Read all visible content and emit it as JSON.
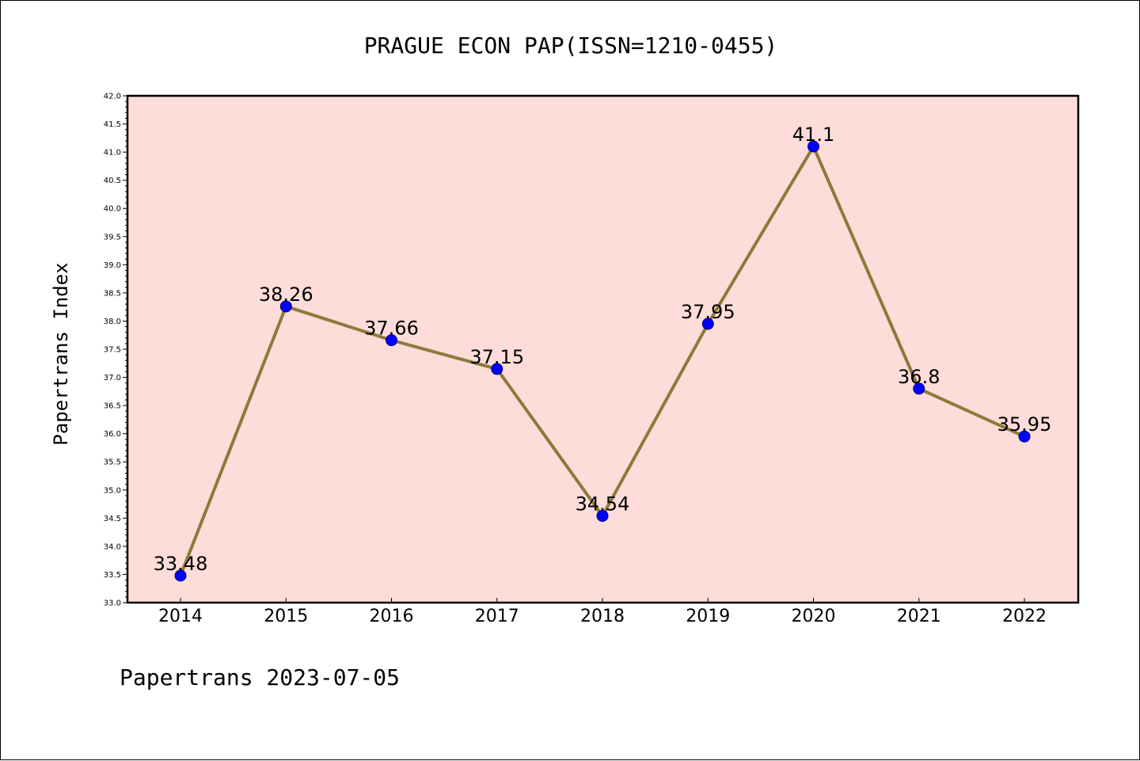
{
  "chart_data": {
    "type": "line",
    "title": "PRAGUE ECON PAP(ISSN=1210-0455)",
    "xlabel": "",
    "ylabel": "Papertrans Index",
    "categories": [
      "2014",
      "2015",
      "2016",
      "2017",
      "2018",
      "2019",
      "2020",
      "2021",
      "2022"
    ],
    "series": [
      {
        "values": [
          33.48,
          38.26,
          37.66,
          37.15,
          34.54,
          37.95,
          41.1,
          36.8,
          35.95
        ],
        "labels": [
          "33.48",
          "38.26",
          "37.66",
          "37.15",
          "34.54",
          "37.95",
          "41.1",
          "36.8",
          "35.95"
        ]
      }
    ],
    "ylim": [
      33.0,
      42.0
    ],
    "yticks": [
      "33.0",
      "33.5",
      "34.0",
      "34.5",
      "35.0",
      "35.5",
      "36.0",
      "36.5",
      "37.0",
      "37.5",
      "38.0",
      "38.5",
      "39.0",
      "39.5",
      "40.0",
      "40.5",
      "41.0",
      "41.5",
      "42.0"
    ],
    "grid": false,
    "colors": {
      "plot_background": "#fddcd9",
      "line": "#8b7b3a",
      "marker": "#0000ff",
      "marker_edge": "#000080"
    }
  },
  "footer": {
    "text": "Papertrans 2023-07-05"
  }
}
